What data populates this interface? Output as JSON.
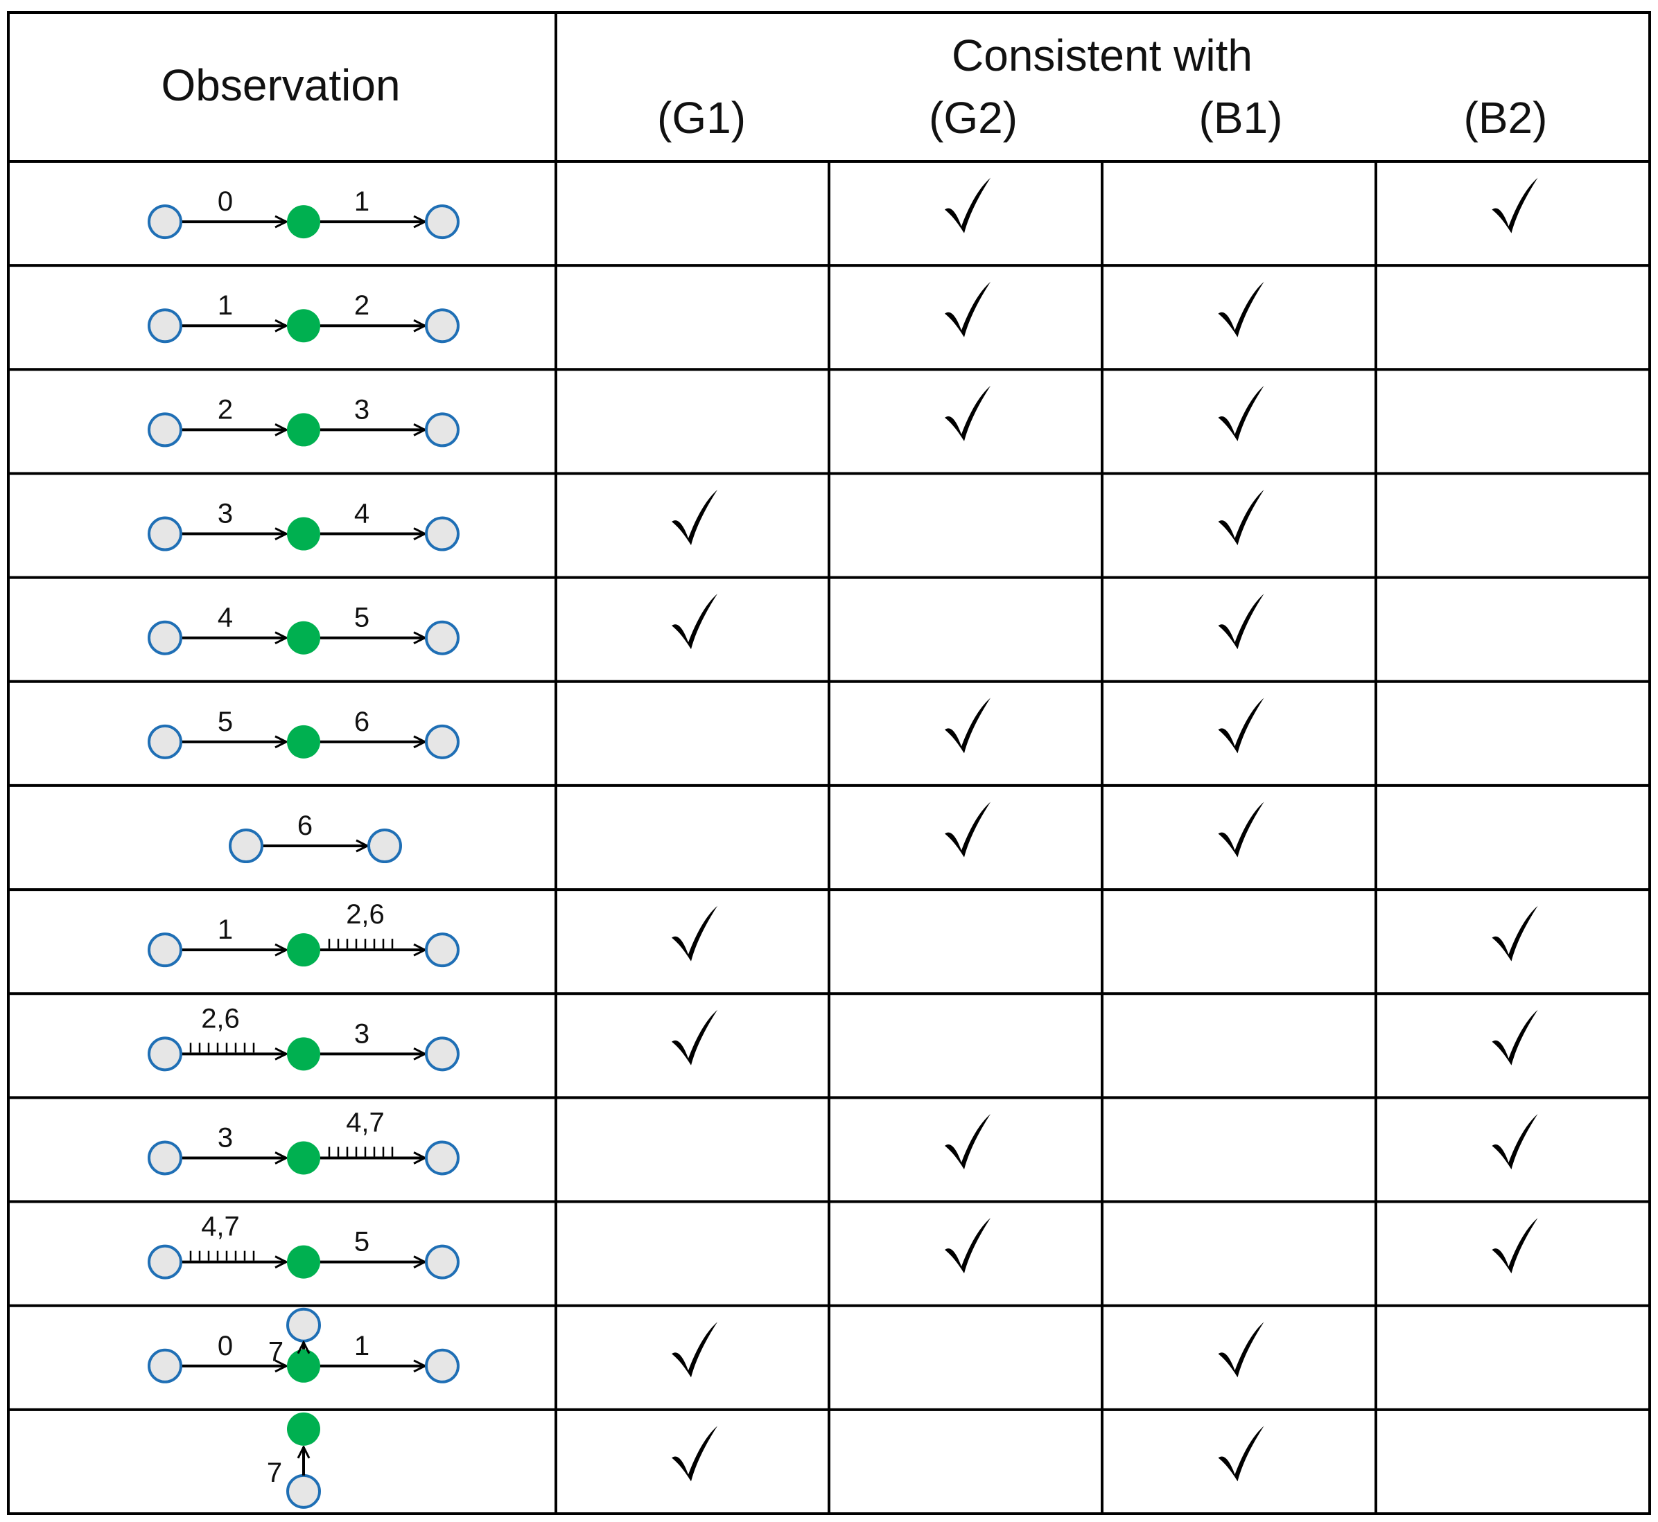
{
  "header": {
    "observation": "Observation",
    "consistent_with": "Consistent with",
    "columns": [
      "(G1)",
      "(G2)",
      "(B1)",
      "(B2)"
    ]
  },
  "colors": {
    "grid": "#000000",
    "open_node_fill": "#e6e6e6",
    "open_node_stroke": "#1f6fb5",
    "green_node": "#00b050",
    "check": "#000000"
  },
  "icons": {
    "check": "check-mark-icon"
  },
  "rows": [
    {
      "diagram": {
        "type": "chain",
        "left": "0",
        "right": "1"
      },
      "checks": [
        false,
        true,
        false,
        true
      ]
    },
    {
      "diagram": {
        "type": "chain",
        "left": "1",
        "right": "2"
      },
      "checks": [
        false,
        true,
        true,
        false
      ]
    },
    {
      "diagram": {
        "type": "chain",
        "left": "2",
        "right": "3"
      },
      "checks": [
        false,
        true,
        true,
        false
      ]
    },
    {
      "diagram": {
        "type": "chain",
        "left": "3",
        "right": "4"
      },
      "checks": [
        true,
        false,
        true,
        false
      ]
    },
    {
      "diagram": {
        "type": "chain",
        "left": "4",
        "right": "5"
      },
      "checks": [
        true,
        false,
        true,
        false
      ]
    },
    {
      "diagram": {
        "type": "chain",
        "left": "5",
        "right": "6"
      },
      "checks": [
        false,
        true,
        true,
        false
      ]
    },
    {
      "diagram": {
        "type": "single",
        "label": "6"
      },
      "checks": [
        false,
        true,
        true,
        false
      ]
    },
    {
      "diagram": {
        "type": "chain",
        "left": "1",
        "right": "2,6",
        "right_dashed": true
      },
      "checks": [
        true,
        false,
        false,
        true
      ]
    },
    {
      "diagram": {
        "type": "chain",
        "left": "2,6",
        "left_dashed": true,
        "right": "3"
      },
      "checks": [
        true,
        false,
        false,
        true
      ]
    },
    {
      "diagram": {
        "type": "chain",
        "left": "3",
        "right": "4,7",
        "right_dashed": true
      },
      "checks": [
        false,
        true,
        false,
        true
      ]
    },
    {
      "diagram": {
        "type": "chain",
        "left": "4,7",
        "left_dashed": true,
        "right": "5"
      },
      "checks": [
        false,
        true,
        false,
        true
      ]
    },
    {
      "diagram": {
        "type": "chain_up",
        "left": "0",
        "right": "1",
        "up": "7"
      },
      "checks": [
        true,
        false,
        true,
        false
      ]
    },
    {
      "diagram": {
        "type": "vertical",
        "label": "7"
      },
      "checks": [
        true,
        false,
        true,
        false
      ]
    }
  ]
}
